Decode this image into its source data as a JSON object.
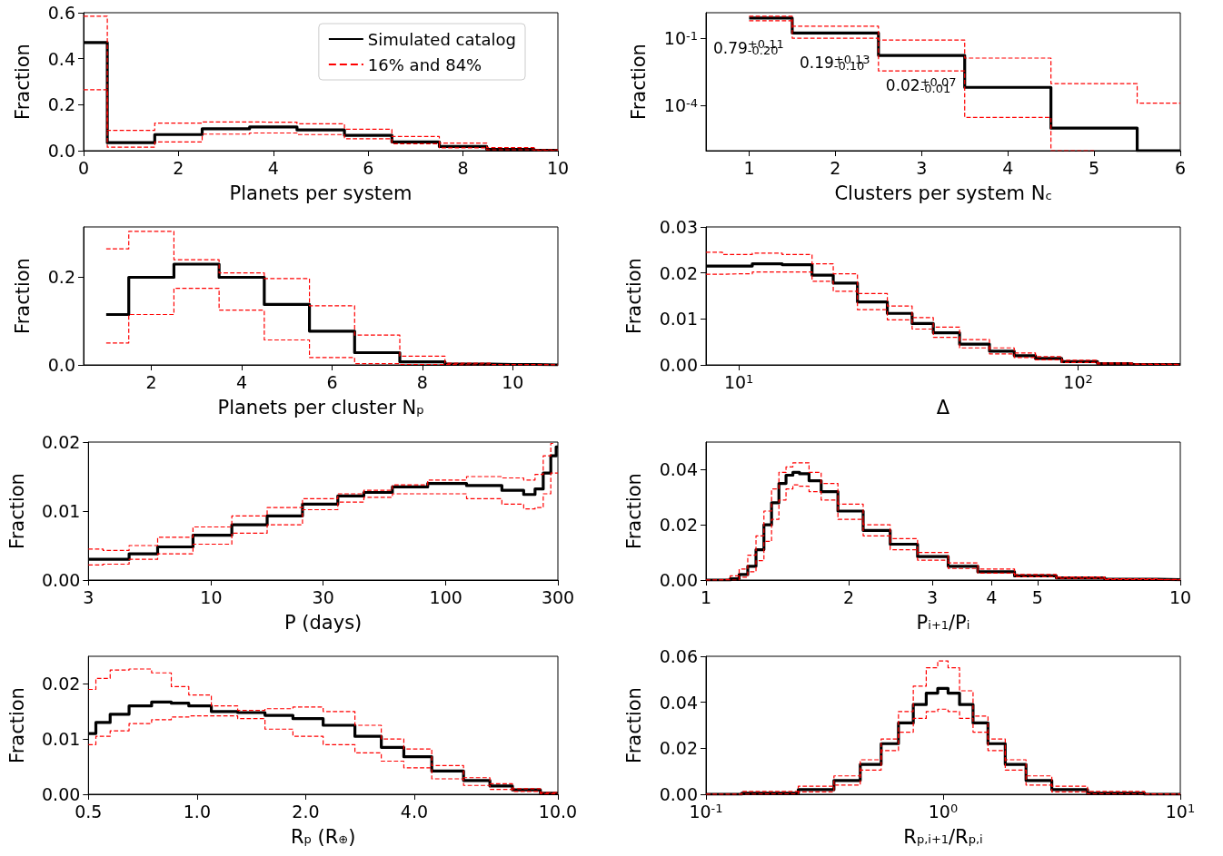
{
  "chart_data": [
    {
      "type": "step",
      "xlabel": "Planets per system",
      "ylabel": "Fraction",
      "xlim": [
        0,
        10
      ],
      "xticks": [
        0,
        2,
        4,
        6,
        8,
        10
      ],
      "ylim": [
        0,
        0.6
      ],
      "yticks": [
        {
          "value": 0,
          "label": "0.0"
        },
        0.2,
        0.4,
        0.6
      ],
      "marker": "none",
      "legend": "top right",
      "x": [
        0,
        1,
        2,
        3,
        4,
        5,
        6,
        7,
        8,
        9,
        10
      ],
      "series": [
        {
          "name": "Simulated catalog",
          "color": "#000000",
          "line_style": "solid",
          "values": [
            0.47,
            0.035,
            0.07,
            0.095,
            0.103,
            0.09,
            0.067,
            0.038,
            0.018,
            0.006,
            0.002
          ]
        },
        {
          "name": "16% and 84%",
          "color": "#ff0000",
          "line_style": "dashed",
          "values": [
            0.585,
            0.088,
            0.12,
            0.125,
            0.124,
            0.117,
            0.093,
            0.062,
            0.033,
            0.013,
            0.004
          ]
        },
        {
          "color": "#ff0000",
          "line_style": "dashed",
          "values": [
            0.265,
            0.015,
            0.038,
            0.072,
            0.077,
            0.07,
            0.052,
            0.03,
            0.012,
            0.004,
            0.001
          ]
        }
      ]
    },
    {
      "type": "step",
      "xlabel": "Clusters per system N$_{c}$",
      "ylabel": "Fraction",
      "xlim": [
        0.5,
        6
      ],
      "xticks": [
        1,
        2,
        3,
        4,
        5,
        6
      ],
      "ylim": [
        1e-06,
        1.35
      ],
      "yticks": [
        {
          "value": 0.1,
          "label": "10$^{-1}$"
        },
        {
          "value": 0.0001,
          "label": "10$^{-4}$"
        }
      ],
      "log": "y",
      "marker": "none",
      "x": [
        1,
        2,
        3,
        4,
        5,
        6
      ],
      "annotations": [
        "0.79$^{+0.11}$$_{-0.20}$",
        "0.19$^{+0.13}$$_{-0.10}$",
        "0.02$^{+0.07}$$_{-0.01}$"
      ],
      "series": [
        {
          "color": "#000000",
          "line_style": "solid",
          "values": [
            0.78,
            0.17,
            0.017,
            0.00065,
            1e-05,
            1e-06
          ]
        },
        {
          "color": "#ff0000",
          "line_style": "dashed",
          "values": [
            0.94,
            0.34,
            0.083,
            0.013,
            0.00095,
            0.00013
          ]
        },
        {
          "color": "#ff0000",
          "line_style": "dashed",
          "values": [
            0.59,
            0.1,
            0.0035,
            3e-05,
            1e-06,
            null
          ]
        }
      ]
    },
    {
      "type": "step",
      "xlabel": "Planets per cluster N$_{p}$",
      "ylabel": "Fraction",
      "xlim": [
        0.5,
        11
      ],
      "xticks": [
        2,
        4,
        6,
        8,
        10
      ],
      "ylim": [
        0,
        0.315
      ],
      "yticks": [
        {
          "value": 0,
          "label": "0.0"
        },
        0.2
      ],
      "marker": "none",
      "x": [
        1,
        2,
        3,
        4,
        5,
        6,
        7,
        8,
        9,
        10,
        11
      ],
      "series": [
        {
          "color": "#000000",
          "line_style": "solid",
          "values": [
            0.115,
            0.2,
            0.23,
            0.2,
            0.138,
            0.077,
            0.028,
            0.007,
            0.002,
            0.001,
            0
          ]
        },
        {
          "color": "#ff0000",
          "line_style": "dashed",
          "values": [
            0.265,
            0.305,
            0.24,
            0.21,
            0.197,
            0.135,
            0.068,
            0.02,
            0.004,
            0.001,
            0
          ]
        },
        {
          "color": "#ff0000",
          "line_style": "dashed",
          "values": [
            0.05,
            0.115,
            0.175,
            0.125,
            0.057,
            0.017,
            0.003,
            0.001,
            0,
            0,
            0
          ]
        }
      ]
    },
    {
      "type": "step",
      "xlabel": "Δ",
      "ylabel": "Fraction",
      "xlim": [
        8,
        200
      ],
      "xticks": [
        {
          "value": 10,
          "label": "10$^{1}$"
        },
        {
          "value": 100,
          "label": "10$^{2}$"
        }
      ],
      "ylim": [
        0,
        0.03
      ],
      "yticks": [
        {
          "value": 0,
          "label": "0.00"
        },
        0.01,
        0.02,
        0.03
      ],
      "log": "x",
      "marker": "none",
      "x": [
        8,
        10,
        12,
        15,
        18,
        20,
        25,
        30,
        35,
        40,
        50,
        60,
        70,
        80,
        100,
        130,
        160,
        200
      ],
      "series": [
        {
          "color": "#000000",
          "line_style": "solid",
          "values": [
            0.0215,
            0.0215,
            0.022,
            0.0218,
            0.0195,
            0.0178,
            0.0137,
            0.0112,
            0.009,
            0.007,
            0.0045,
            0.003,
            0.002,
            0.0014,
            0.0007,
            0.0003,
            0.0001,
            0.0001
          ]
        },
        {
          "color": "#ff0000",
          "line_style": "dashed",
          "values": [
            0.0245,
            0.024,
            0.0243,
            0.024,
            0.022,
            0.0198,
            0.0155,
            0.0128,
            0.0103,
            0.0082,
            0.0055,
            0.0037,
            0.0026,
            0.0018,
            0.001,
            0.0004,
            0.0002,
            0.0001
          ]
        },
        {
          "color": "#ff0000",
          "line_style": "dashed",
          "values": [
            0.0197,
            0.0198,
            0.0202,
            0.0202,
            0.0182,
            0.016,
            0.012,
            0.0098,
            0.0078,
            0.006,
            0.0037,
            0.0024,
            0.0016,
            0.0011,
            0.0005,
            0.0002,
            0.0001,
            0
          ]
        }
      ]
    },
    {
      "type": "step",
      "xlabel": "P (days)",
      "ylabel": "Fraction",
      "xlim": [
        3,
        300
      ],
      "xticks": [
        3,
        10,
        30,
        100,
        300
      ],
      "ylim": [
        0,
        0.02
      ],
      "yticks": [
        {
          "value": 0,
          "label": "0.00"
        },
        0.01,
        0.02
      ],
      "log": "x",
      "marker": "none",
      "x": [
        3,
        4,
        5,
        7,
        10,
        15,
        20,
        30,
        40,
        50,
        70,
        100,
        150,
        200,
        230,
        250,
        270,
        290,
        300
      ],
      "series": [
        {
          "color": "#000000",
          "line_style": "solid",
          "values": [
            0.003,
            0.003,
            0.0038,
            0.0048,
            0.0065,
            0.008,
            0.0093,
            0.011,
            0.0122,
            0.0127,
            0.0135,
            0.014,
            0.0137,
            0.013,
            0.0124,
            0.0132,
            0.0155,
            0.018,
            0.0193
          ]
        },
        {
          "color": "#ff0000",
          "line_style": "dashed",
          "values": [
            0.0045,
            0.0043,
            0.005,
            0.0062,
            0.0077,
            0.0093,
            0.0105,
            0.0118,
            0.0125,
            0.013,
            0.0138,
            0.0145,
            0.015,
            0.0148,
            0.0145,
            0.0153,
            0.018,
            0.0198,
            null
          ]
        },
        {
          "color": "#ff0000",
          "line_style": "dashed",
          "values": [
            0.0022,
            0.0023,
            0.003,
            0.0038,
            0.0052,
            0.0068,
            0.008,
            0.0102,
            0.0113,
            0.012,
            0.0125,
            0.0125,
            0.0118,
            0.011,
            0.0103,
            0.0105,
            0.0125,
            0.0155,
            0.0155
          ]
        }
      ]
    },
    {
      "type": "step",
      "xlabel": "P$_{i+1}$/P$_{i}$",
      "ylabel": "Fraction",
      "xlim": [
        1,
        10
      ],
      "xticks": [
        1,
        2,
        3,
        4,
        5,
        10
      ],
      "ylim": [
        0,
        0.05
      ],
      "yticks": [
        {
          "value": 0,
          "label": "0.00"
        },
        0.02,
        0.04
      ],
      "log": "x",
      "marker": "none",
      "x": [
        1,
        1.1,
        1.15,
        1.2,
        1.25,
        1.3,
        1.35,
        1.4,
        1.45,
        1.5,
        1.55,
        1.6,
        1.7,
        1.8,
        2,
        2.3,
        2.6,
        3,
        3.5,
        4,
        5,
        6,
        8,
        10
      ],
      "series": [
        {
          "color": "#000000",
          "line_style": "solid",
          "values": [
            0,
            0,
            0.0005,
            0.002,
            0.005,
            0.011,
            0.02,
            0.028,
            0.035,
            0.038,
            0.039,
            0.0385,
            0.036,
            0.032,
            0.025,
            0.018,
            0.013,
            0.0085,
            0.005,
            0.003,
            0.0015,
            0.0008,
            0.0003,
            0.0001
          ]
        },
        {
          "color": "#ff0000",
          "line_style": "dashed",
          "values": [
            0,
            0.0002,
            0.0015,
            0.004,
            0.009,
            0.016,
            0.025,
            0.033,
            0.039,
            0.041,
            0.0425,
            0.0425,
            0.039,
            0.035,
            0.0275,
            0.02,
            0.015,
            0.01,
            0.0062,
            0.004,
            0.002,
            0.0011,
            0.0005,
            0.0002
          ]
        },
        {
          "color": "#ff0000",
          "line_style": "dashed",
          "values": [
            0,
            0,
            0,
            0.001,
            0.003,
            0.007,
            0.014,
            0.022,
            0.029,
            0.033,
            0.0345,
            0.034,
            0.032,
            0.029,
            0.022,
            0.016,
            0.011,
            0.0072,
            0.0042,
            0.0025,
            0.0012,
            0.0006,
            0.0002,
            0
          ]
        }
      ]
    },
    {
      "type": "step",
      "xlabel": "R$_{p}$ (R$_{⊕}$)",
      "ylabel": "Fraction",
      "xlim": [
        0.5,
        10
      ],
      "xticks": [
        0.5,
        {
          "value": 1,
          "label": "1.0"
        },
        {
          "value": 2,
          "label": "2.0"
        },
        {
          "value": 4,
          "label": "4.0"
        },
        {
          "value": 10,
          "label": "10.0"
        }
      ],
      "ylim": [
        0,
        0.025
      ],
      "yticks": [
        {
          "value": 0,
          "label": "0.00"
        },
        0.01,
        0.02
      ],
      "log": "x",
      "marker": "none",
      "x": [
        0.5,
        0.55,
        0.6,
        0.7,
        0.8,
        0.9,
        1.0,
        1.2,
        1.4,
        1.7,
        2.0,
        2.5,
        3,
        3.5,
        4,
        5,
        6,
        7,
        8,
        10
      ],
      "series": [
        {
          "color": "#000000",
          "line_style": "solid",
          "values": [
            0.011,
            0.013,
            0.0145,
            0.016,
            0.0167,
            0.0165,
            0.016,
            0.015,
            0.0148,
            0.0143,
            0.0137,
            0.0125,
            0.0105,
            0.0085,
            0.0068,
            0.0042,
            0.0025,
            0.0015,
            0.0008,
            0.0002
          ]
        },
        {
          "color": "#ff0000",
          "line_style": "dashed",
          "values": [
            0.019,
            0.021,
            0.0225,
            0.0227,
            0.022,
            0.0195,
            0.018,
            0.016,
            0.0152,
            0.0155,
            0.0158,
            0.015,
            0.0125,
            0.01,
            0.0082,
            0.0052,
            0.003,
            0.0019,
            0.001,
            0.0003
          ]
        },
        {
          "color": "#ff0000",
          "line_style": "dashed",
          "values": [
            0.009,
            0.0105,
            0.0115,
            0.0128,
            0.0135,
            0.014,
            0.0142,
            0.0142,
            0.0137,
            0.0118,
            0.0105,
            0.009,
            0.0075,
            0.006,
            0.0048,
            0.0028,
            0.0016,
            0.0009,
            0.0005,
            0.0001
          ]
        }
      ]
    },
    {
      "type": "step",
      "xlabel": "R$_{p,i+1}$/R$_{p,i}$",
      "ylabel": "Fraction",
      "xlim": [
        0.1,
        10
      ],
      "xticks": [
        {
          "value": 0.1,
          "label": "10$^{-1}$"
        },
        {
          "value": 1,
          "label": "10$^{0}$"
        },
        {
          "value": 10,
          "label": "10$^{1}$"
        }
      ],
      "ylim": [
        0,
        0.06
      ],
      "yticks": [
        {
          "value": 0,
          "label": "0.00"
        },
        0.02,
        0.04,
        0.06
      ],
      "log": "x",
      "marker": "none",
      "x": [
        0.1,
        0.2,
        0.3,
        0.4,
        0.5,
        0.6,
        0.7,
        0.8,
        0.9,
        1.0,
        1.1,
        1.25,
        1.43,
        1.67,
        2,
        2.5,
        3.3,
        5,
        10
      ],
      "series": [
        {
          "color": "#000000",
          "line_style": "solid",
          "values": [
            0,
            0.0005,
            0.002,
            0.006,
            0.013,
            0.022,
            0.031,
            0.039,
            0.044,
            0.046,
            0.044,
            0.039,
            0.031,
            0.022,
            0.013,
            0.006,
            0.002,
            0.0005,
            0
          ]
        },
        {
          "color": "#ff0000",
          "line_style": "dashed",
          "values": [
            0,
            0.0012,
            0.0035,
            0.008,
            0.015,
            0.024,
            0.036,
            0.047,
            0.055,
            0.058,
            0.055,
            0.045,
            0.034,
            0.024,
            0.015,
            0.008,
            0.0035,
            0.0012,
            0
          ]
        },
        {
          "color": "#ff0000",
          "line_style": "dashed",
          "values": [
            0,
            0.0002,
            0.001,
            0.004,
            0.0105,
            0.019,
            0.027,
            0.033,
            0.036,
            0.037,
            0.036,
            0.033,
            0.027,
            0.019,
            0.0105,
            0.004,
            0.001,
            0.0002,
            0
          ]
        }
      ]
    }
  ]
}
